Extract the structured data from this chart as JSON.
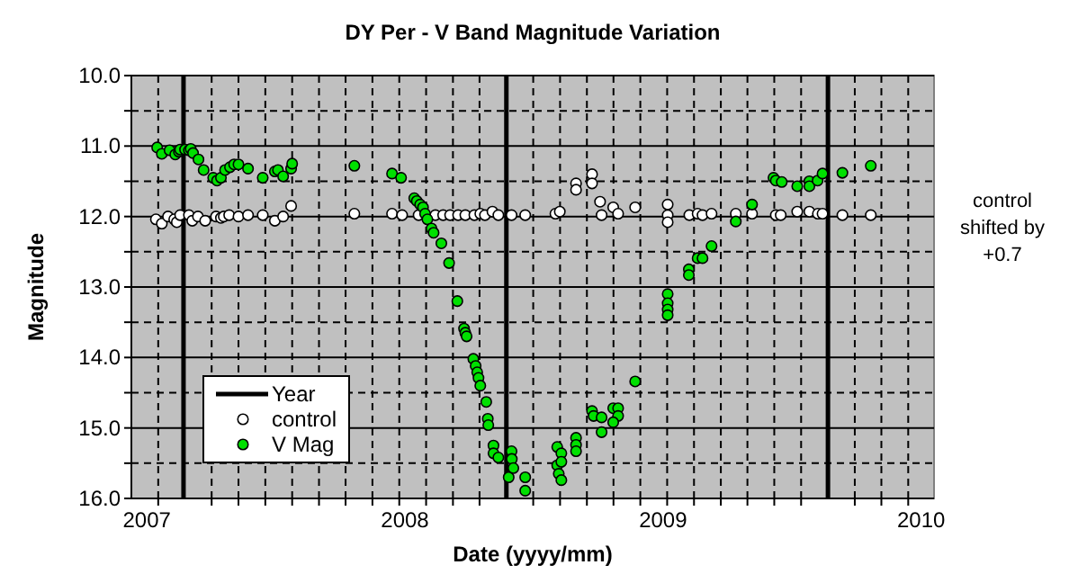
{
  "chart_data": {
    "type": "scatter",
    "title": "DY Per - V Band Magnitude Variation",
    "xlabel": "Date (yyyy/mm)",
    "ylabel": "Magnitude",
    "annotations": [
      "control\nshifted by\n+0.7"
    ],
    "xlim": [
      2006.94,
      2010.05
    ],
    "xticks": [
      2007,
      2008,
      2009,
      2010,
      {
        "value": 2007.044,
        "label": null
      },
      {
        "value": 2007.251,
        "label": null
      },
      {
        "value": 2007.355,
        "label": null
      },
      {
        "value": 2007.459,
        "label": null
      },
      {
        "value": 2007.563,
        "label": null
      },
      {
        "value": 2007.667,
        "label": null
      },
      {
        "value": 2007.77,
        "label": null
      },
      {
        "value": 2007.874,
        "label": null
      },
      {
        "value": 2007.978,
        "label": null
      },
      {
        "value": 2008.082,
        "label": null
      },
      {
        "value": 2008.186,
        "label": null
      },
      {
        "value": 2008.289,
        "label": null
      },
      {
        "value": 2008.497,
        "label": null
      },
      {
        "value": 2008.601,
        "label": null
      },
      {
        "value": 2008.705,
        "label": null
      },
      {
        "value": 2008.808,
        "label": null
      },
      {
        "value": 2008.912,
        "label": null
      },
      {
        "value": 2009.016,
        "label": null
      },
      {
        "value": 2009.12,
        "label": null
      },
      {
        "value": 2009.224,
        "label": null
      },
      {
        "value": 2009.327,
        "label": null
      },
      {
        "value": 2009.431,
        "label": null
      },
      {
        "value": 2009.535,
        "label": null
      },
      {
        "value": 2009.743,
        "label": null
      },
      {
        "value": 2009.846,
        "label": null
      },
      {
        "value": 2009.95,
        "label": null
      }
    ],
    "ylim": [
      16,
      10
    ],
    "yticks": [
      {
        "value": 10,
        "label": "10.0"
      },
      {
        "value": 10.5,
        "label": null
      },
      {
        "value": 11,
        "label": "11.0"
      },
      {
        "value": 11.5,
        "label": null
      },
      {
        "value": 12,
        "label": "12.0"
      },
      {
        "value": 12.5,
        "label": null
      },
      {
        "value": 13,
        "label": "13.0"
      },
      {
        "value": 13.5,
        "label": null
      },
      {
        "value": 14,
        "label": "14.0"
      },
      {
        "value": 14.5,
        "label": null
      },
      {
        "value": 15,
        "label": "15.0"
      },
      {
        "value": 15.5,
        "label": null
      },
      {
        "value": 16,
        "label": "16.0"
      }
    ],
    "grid": true,
    "legend": "bottom left",
    "marker": "circle",
    "series": [
      {
        "name": "Year",
        "type": "line",
        "marker": "none",
        "color": "#000000",
        "x": [
          2007.142,
          2007.142
        ],
        "values": [
          10,
          16
        ]
      },
      {
        "type": "line",
        "marker": "none",
        "color": "#000000",
        "x": [
          2008.393,
          2008.393
        ],
        "values": [
          10,
          16
        ]
      },
      {
        "type": "line",
        "marker": "none",
        "color": "#000000",
        "x": [
          2009.639,
          2009.639
        ],
        "values": [
          10,
          16
        ]
      },
      {
        "name": "control",
        "color": "#ffffff",
        "x": [
          2007.035,
          2007.058,
          2007.082,
          2007.106,
          2007.116,
          2007.129,
          2007.163,
          2007.176,
          2007.198,
          2007.226,
          2007.268,
          2007.287,
          2007.298,
          2007.319,
          2007.355,
          2007.392,
          2007.449,
          2007.496,
          2007.528,
          2007.559,
          2007.804,
          2007.95,
          2007.989,
          2008.053,
          2008.118,
          2008.148,
          2008.175,
          2008.206,
          2008.234,
          2008.269,
          2008.292,
          2008.31,
          2008.339,
          2008.362,
          2008.413,
          2008.466,
          2008.583,
          2008.6,
          2008.663,
          2008.663,
          2008.725,
          2008.725,
          2008.756,
          2008.762,
          2008.807,
          2008.826,
          2008.892,
          2009.018,
          2009.018,
          2009.018,
          2009.102,
          2009.134,
          2009.153,
          2009.188,
          2009.282,
          2009.345,
          2009.437,
          2009.456,
          2009.52,
          2009.567,
          2009.6,
          2009.618,
          2009.695,
          2009.805
        ],
        "values": [
          12.04,
          12.1,
          12.0,
          12.04,
          12.08,
          11.98,
          11.98,
          12.06,
          12.0,
          12.06,
          12.0,
          12.02,
          12.0,
          11.98,
          12.0,
          11.98,
          11.98,
          12.06,
          12.0,
          11.85,
          11.96,
          11.96,
          11.98,
          11.98,
          11.98,
          11.98,
          11.98,
          11.98,
          11.98,
          11.98,
          11.96,
          11.98,
          11.93,
          11.98,
          11.98,
          11.98,
          11.96,
          11.93,
          11.53,
          11.62,
          11.4,
          11.53,
          11.79,
          11.98,
          11.87,
          11.96,
          11.87,
          11.83,
          11.98,
          12.08,
          11.98,
          11.96,
          11.98,
          11.96,
          11.96,
          11.96,
          11.98,
          11.98,
          11.93,
          11.93,
          11.96,
          11.96,
          11.98,
          11.98
        ]
      },
      {
        "name": "V Mag",
        "color": "#00e000",
        "x": [
          2007.04,
          2007.058,
          2007.088,
          2007.11,
          2007.124,
          2007.129,
          2007.148,
          2007.163,
          2007.17,
          2007.179,
          2007.2,
          2007.22,
          2007.257,
          2007.272,
          2007.287,
          2007.303,
          2007.322,
          2007.338,
          2007.355,
          2007.392,
          2007.449,
          2007.496,
          2007.508,
          2007.528,
          2007.559,
          2007.563,
          2007.804,
          2007.95,
          2007.985,
          2008.036,
          2008.046,
          2008.059,
          2008.07,
          2008.078,
          2008.087,
          2008.103,
          2008.111,
          2008.141,
          2008.171,
          2008.203,
          2008.229,
          2008.234,
          2008.239,
          2008.265,
          2008.274,
          2008.28,
          2008.285,
          2008.292,
          2008.315,
          2008.321,
          2008.323,
          2008.343,
          2008.343,
          2008.362,
          2008.402,
          2008.413,
          2008.414,
          2008.42,
          2008.466,
          2008.466,
          2008.59,
          2008.59,
          2008.596,
          2008.606,
          2008.606,
          2008.606,
          2008.663,
          2008.663,
          2008.663,
          2008.725,
          2008.731,
          2008.762,
          2008.762,
          2008.807,
          2008.826,
          2008.826,
          2008.807,
          2008.892,
          2009.018,
          2009.018,
          2009.018,
          2009.018,
          2009.1,
          2009.1,
          2009.134,
          2009.153,
          2009.188,
          2009.282,
          2009.345,
          2009.428,
          2009.437,
          2009.46,
          2009.52,
          2009.567,
          2009.567,
          2009.599,
          2009.618,
          2009.695,
          2009.805
        ],
        "values": [
          11.02,
          11.11,
          11.06,
          11.12,
          11.08,
          11.05,
          11.05,
          11.06,
          11.04,
          11.1,
          11.19,
          11.34,
          11.45,
          11.49,
          11.45,
          11.34,
          11.3,
          11.26,
          11.26,
          11.32,
          11.45,
          11.36,
          11.34,
          11.43,
          11.32,
          11.25,
          11.28,
          11.39,
          11.45,
          11.74,
          11.78,
          11.83,
          11.87,
          11.96,
          12.04,
          12.17,
          12.23,
          12.38,
          12.66,
          13.2,
          13.59,
          13.65,
          13.7,
          14.02,
          14.12,
          14.21,
          14.29,
          14.4,
          14.63,
          14.87,
          14.96,
          15.25,
          15.36,
          15.42,
          15.7,
          15.33,
          15.44,
          15.57,
          15.7,
          15.89,
          15.27,
          15.53,
          15.65,
          15.36,
          15.48,
          15.74,
          15.14,
          15.24,
          15.33,
          14.76,
          14.83,
          14.85,
          15.06,
          14.72,
          14.72,
          14.83,
          14.92,
          14.34,
          13.1,
          13.23,
          13.32,
          13.4,
          12.75,
          12.83,
          12.59,
          12.59,
          12.42,
          12.07,
          11.83,
          11.45,
          11.49,
          11.51,
          11.57,
          11.5,
          11.57,
          11.49,
          11.39,
          11.38,
          11.28
        ]
      }
    ]
  }
}
